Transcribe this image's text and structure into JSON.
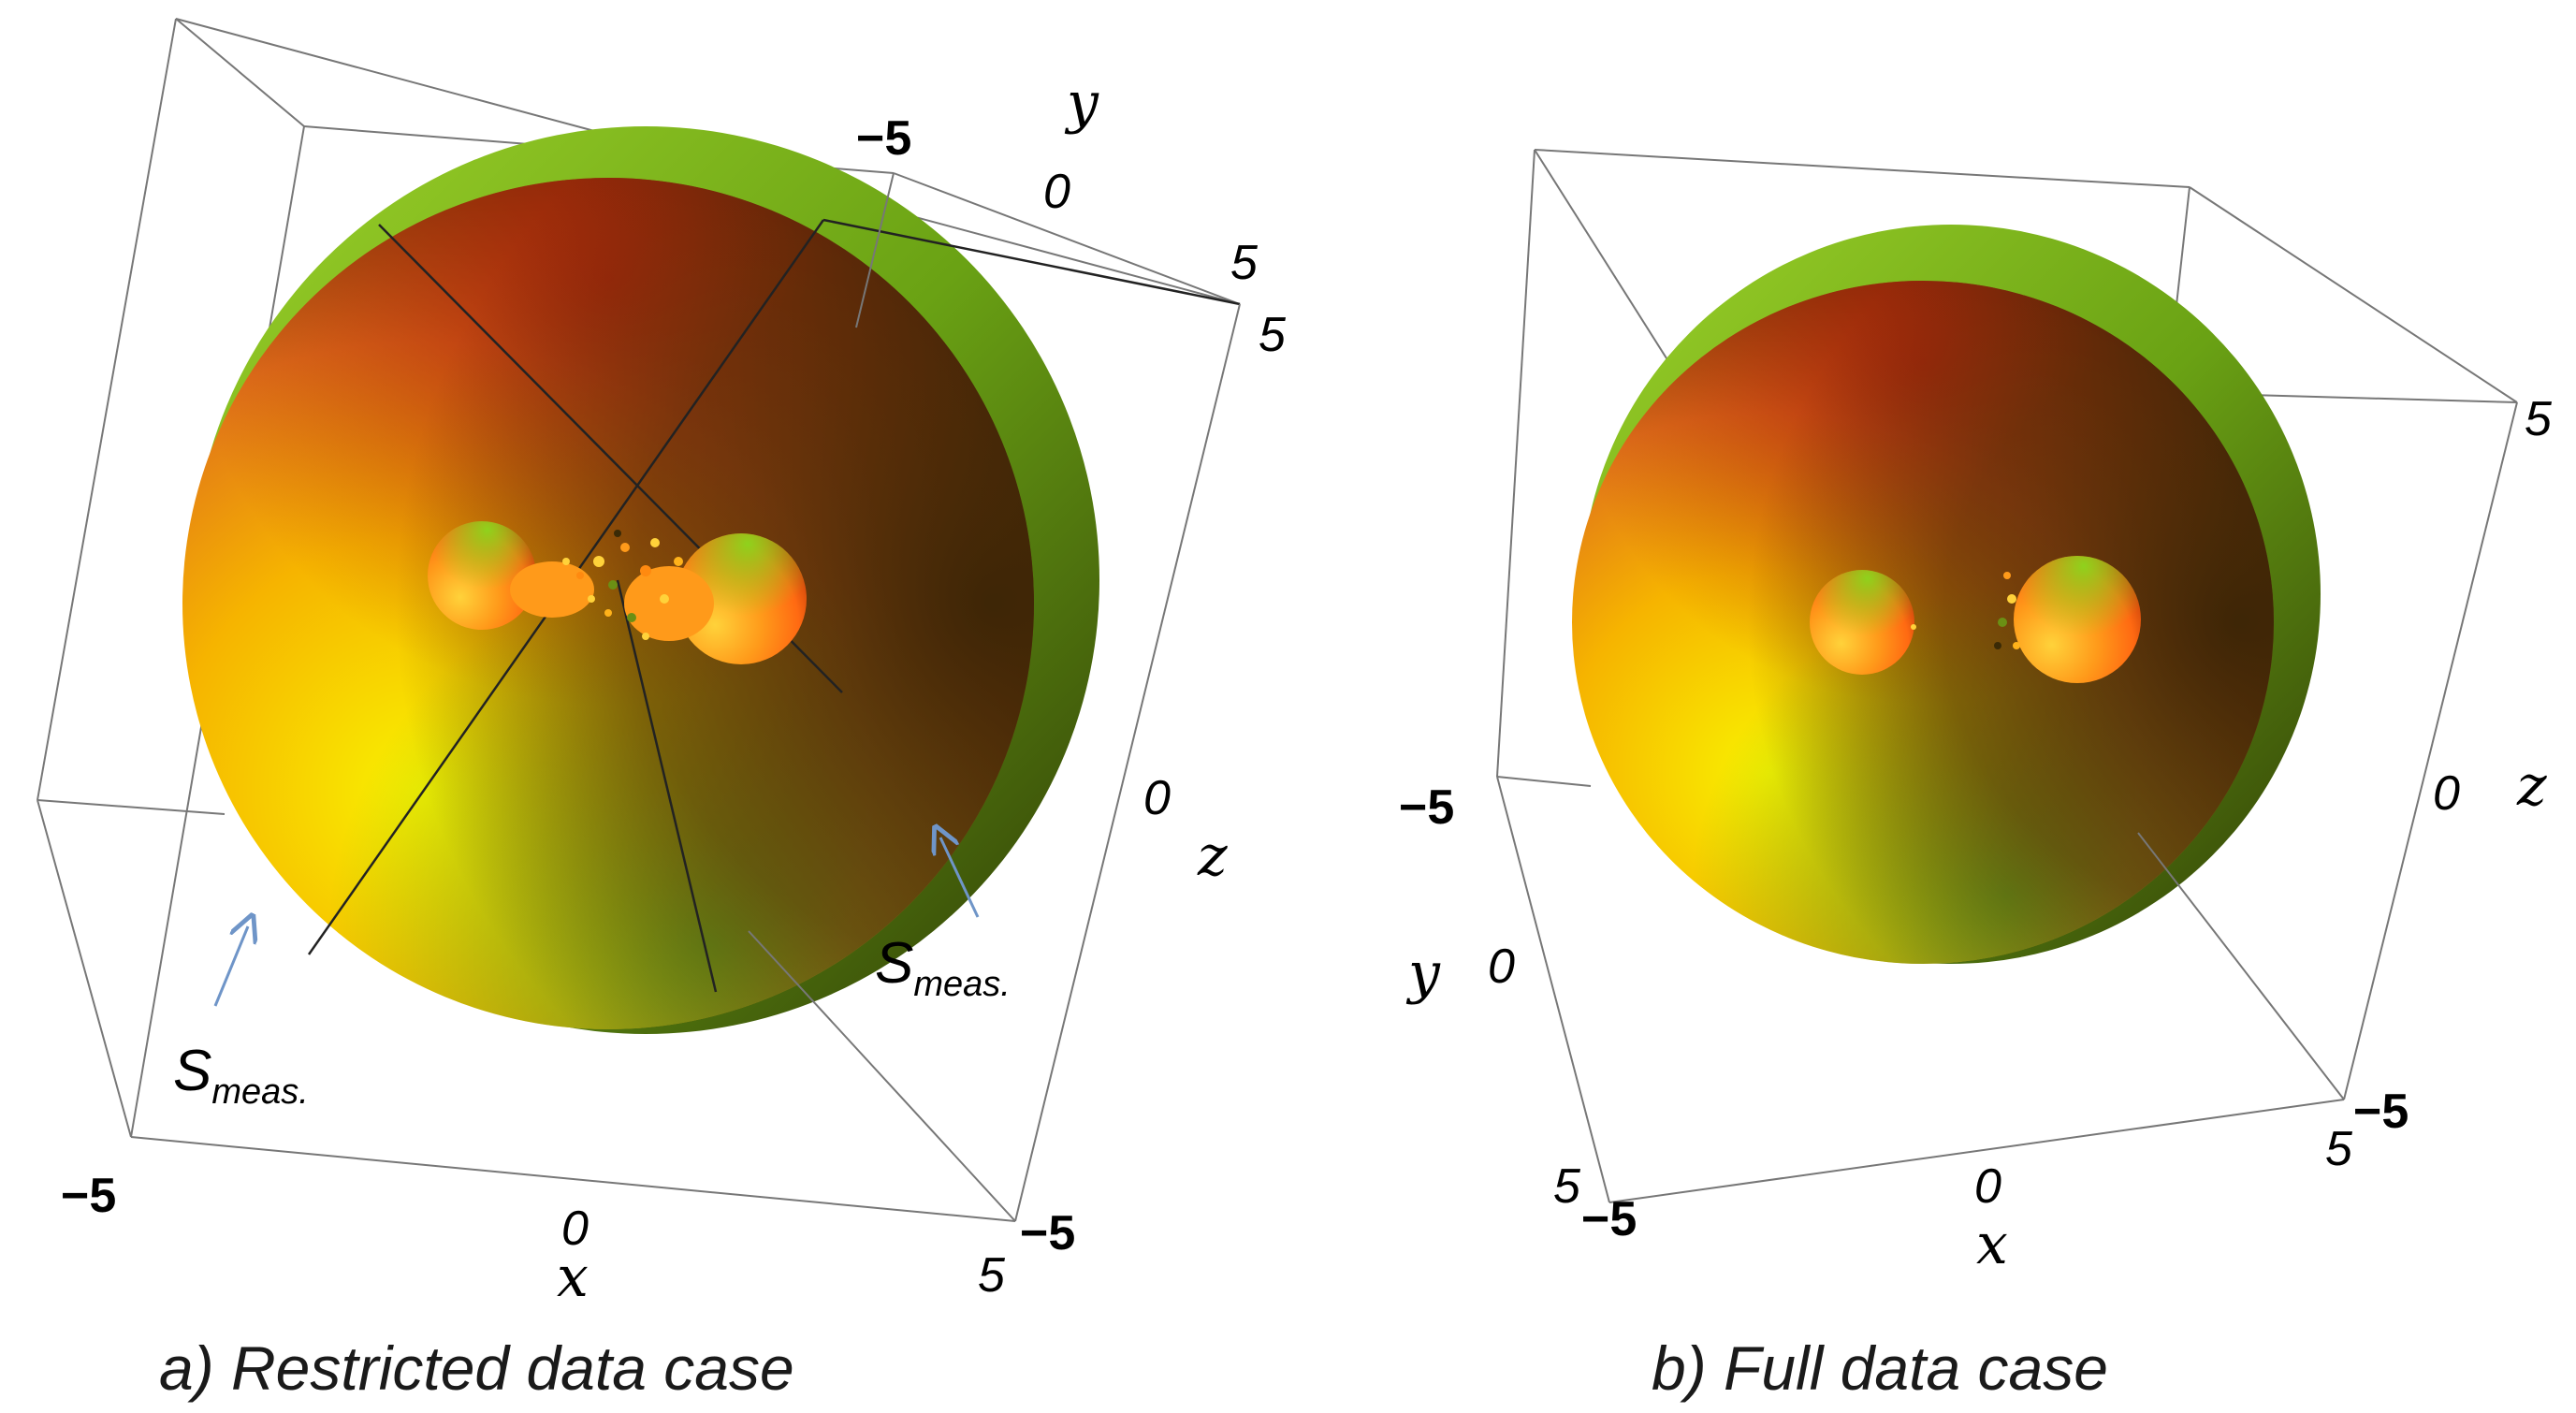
{
  "panel_a": {
    "caption": "a) Restricted data case",
    "ticks": {
      "y_neg": "−5",
      "y_zero": "0",
      "y_pos": "5",
      "corner_pos": "5",
      "z_zero": "0",
      "x_neg": "−5",
      "x_zero": "0",
      "x_pos": "5",
      "corner_neg": "−5"
    },
    "axes": {
      "x": "x",
      "y": "y",
      "z": "z"
    },
    "annotations": [
      {
        "main": "S",
        "sub": "meas."
      },
      {
        "main": "S",
        "sub": "meas."
      }
    ]
  },
  "panel_b": {
    "caption": "b) Full data case",
    "ticks": {
      "corner_pos_top": "5",
      "z_zero": "0",
      "y_neg": "−5",
      "y_zero": "0",
      "right_neg": "−5",
      "right_pos": "5",
      "x_zero": "0",
      "left_pos": "5",
      "left_neg": "−5"
    },
    "axes": {
      "x": "x",
      "y": "y",
      "z": "z"
    }
  },
  "colors": {
    "sphere_light": "#f7ee00",
    "sphere_mid": "#ff8c1a",
    "sphere_dark": "#3d2406",
    "sphere_green": "#7cc21c",
    "arrow": "#6f95c8"
  }
}
